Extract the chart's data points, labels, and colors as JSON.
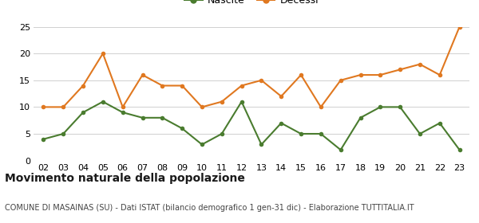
{
  "years": [
    "02",
    "03",
    "04",
    "05",
    "06",
    "07",
    "08",
    "09",
    "10",
    "11",
    "12",
    "13",
    "14",
    "15",
    "16",
    "17",
    "18",
    "19",
    "20",
    "21",
    "22",
    "23"
  ],
  "nascite": [
    4,
    5,
    9,
    11,
    9,
    8,
    8,
    6,
    3,
    5,
    11,
    3,
    7,
    5,
    5,
    2,
    8,
    10,
    10,
    5,
    7,
    2
  ],
  "decessi": [
    10,
    10,
    14,
    20,
    10,
    16,
    14,
    14,
    10,
    11,
    14,
    15,
    12,
    16,
    10,
    15,
    16,
    16,
    17,
    18,
    16,
    25
  ],
  "nascite_color": "#4a7c2f",
  "decessi_color": "#e07820",
  "ylim": [
    0,
    25
  ],
  "yticks": [
    0,
    5,
    10,
    15,
    20,
    25
  ],
  "title": "Movimento naturale della popolazione",
  "subtitle": "COMUNE DI MASAINAS (SU) - Dati ISTAT (bilancio demografico 1 gen-31 dic) - Elaborazione TUTTITALIA.IT",
  "legend_nascite": "Nascite",
  "legend_decessi": "Decessi",
  "background_color": "#ffffff",
  "grid_color": "#d0d0d0",
  "title_fontsize": 10,
  "subtitle_fontsize": 7,
  "legend_fontsize": 9,
  "tick_fontsize": 8,
  "marker_size": 4,
  "linewidth": 1.5
}
